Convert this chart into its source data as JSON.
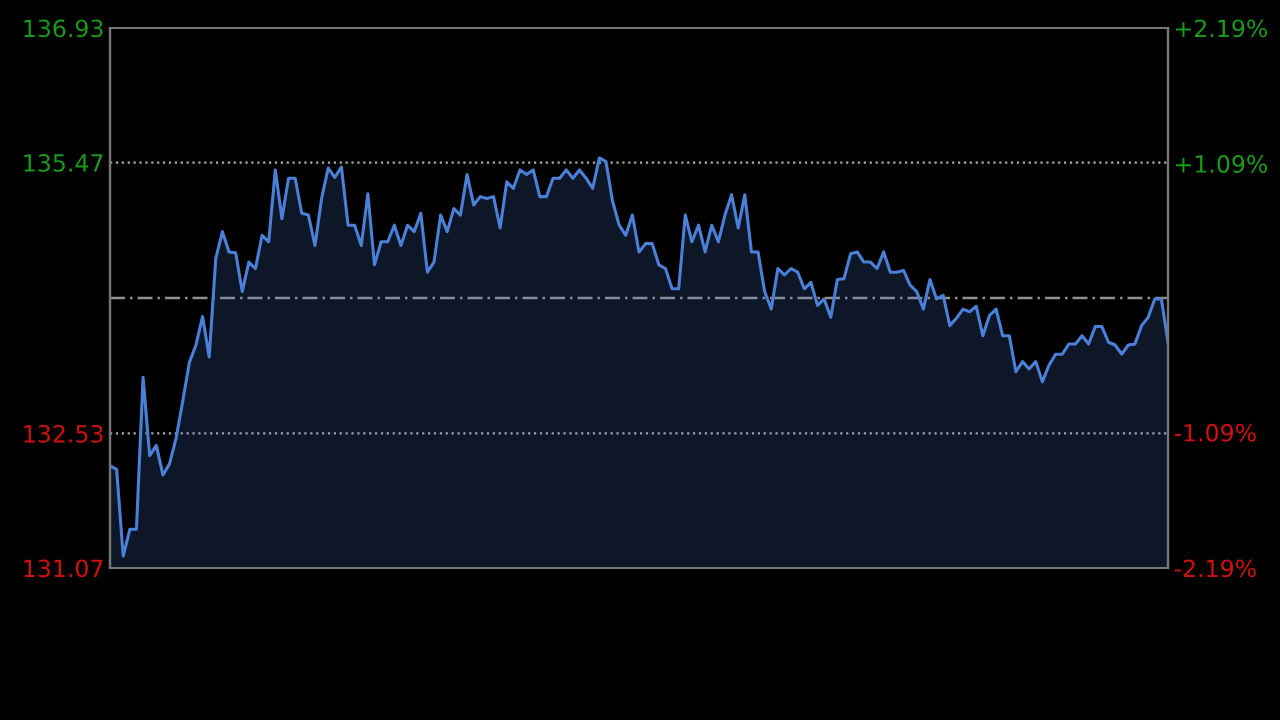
{
  "chart_data": {
    "type": "area",
    "categories": [
      null,
      null,
      null,
      null,
      null,
      null,
      null,
      null,
      null,
      null,
      null,
      null,
      null,
      null,
      null,
      null,
      null,
      null,
      null,
      null,
      null,
      null,
      null,
      null,
      null,
      null,
      null,
      null,
      null,
      null,
      null,
      null,
      null,
      null,
      null,
      null,
      null,
      null,
      null,
      null,
      null,
      null,
      null,
      null,
      null,
      null,
      null,
      null,
      null,
      null,
      null,
      null,
      null,
      null,
      null,
      null,
      null,
      null,
      null,
      null,
      null,
      null,
      null,
      null,
      null,
      null,
      null,
      null,
      null,
      null,
      null,
      null,
      null,
      null,
      null,
      null,
      null,
      null,
      null,
      null,
      null,
      null,
      null,
      null,
      null,
      null,
      null,
      null,
      null,
      null,
      null,
      null,
      null,
      null,
      null,
      null,
      null,
      null,
      null,
      null,
      null,
      null,
      null,
      null,
      null,
      null,
      null,
      null,
      null,
      null,
      null,
      null,
      null,
      null,
      null,
      null,
      null,
      null,
      null,
      null,
      null,
      null,
      null,
      null,
      null,
      null,
      null,
      null,
      null,
      null,
      null,
      null,
      null,
      null,
      null,
      null,
      null,
      null,
      null,
      null,
      null,
      null,
      null,
      null,
      null,
      null,
      null,
      null,
      null,
      null,
      null,
      null,
      null,
      null,
      null,
      null,
      null,
      null,
      null,
      null,
      null
    ],
    "series": [
      {
        "color": "#4a80d8",
        "values": [
          132.18,
          132.14,
          131.2,
          131.49,
          131.49,
          133.14,
          132.29,
          132.4,
          132.08,
          132.2,
          132.48,
          132.88,
          133.3,
          133.49,
          133.8,
          133.36,
          134.43,
          134.72,
          134.5,
          134.49,
          134.07,
          134.39,
          134.32,
          134.68,
          134.61,
          135.39,
          134.86,
          135.3,
          135.3,
          134.92,
          134.9,
          134.57,
          135.08,
          135.41,
          135.31,
          135.42,
          134.79,
          134.79,
          134.57,
          135.13,
          134.36,
          134.61,
          134.61,
          134.79,
          134.57,
          134.79,
          134.72,
          134.92,
          134.28,
          134.39,
          134.9,
          134.72,
          134.97,
          134.9,
          135.34,
          135.01,
          135.1,
          135.08,
          135.1,
          134.76,
          135.26,
          135.19,
          135.39,
          135.34,
          135.39,
          135.1,
          135.1,
          135.3,
          135.3,
          135.39,
          135.3,
          135.39,
          135.3,
          135.19,
          135.52,
          135.48,
          135.05,
          134.79,
          134.68,
          134.9,
          134.5,
          134.59,
          134.59,
          134.36,
          134.32,
          134.1,
          134.1,
          134.9,
          134.61,
          134.79,
          134.5,
          134.79,
          134.61,
          134.9,
          135.12,
          134.76,
          135.12,
          134.5,
          134.5,
          134.07,
          133.88,
          134.32,
          134.25,
          134.32,
          134.28,
          134.1,
          134.17,
          133.92,
          133.99,
          133.79,
          134.2,
          134.21,
          134.48,
          134.5,
          134.39,
          134.39,
          134.32,
          134.5,
          134.28,
          134.28,
          134.3,
          134.14,
          134.07,
          133.88,
          134.2,
          133.99,
          134.03,
          133.7,
          133.78,
          133.88,
          133.85,
          133.91,
          133.59,
          133.81,
          133.88,
          133.59,
          133.59,
          133.2,
          133.31,
          133.23,
          133.31,
          133.09,
          133.27,
          133.39,
          133.39,
          133.5,
          133.5,
          133.59,
          133.5,
          133.69,
          133.69,
          133.52,
          133.49,
          133.39,
          133.49,
          133.5,
          133.7,
          133.79,
          133.99,
          133.99,
          133.52
        ]
      }
    ],
    "ylim": [
      131.07,
      136.93
    ],
    "yticks": [
      131.07,
      132.53,
      135.47,
      136.93
    ],
    "y2lim": [
      -2.19,
      2.19
    ],
    "y2ticks": [
      {
        "value": -2.19,
        "label": "-2.19%"
      },
      {
        "value": -1.09,
        "label": "-1.09%"
      },
      {
        "value": 1.09,
        "label": "+1.09%"
      },
      {
        "value": 2.19,
        "label": "+2.19%"
      }
    ],
    "ref_lines": [
      {
        "axis": "y",
        "value": 134.0,
        "label": null,
        "color": "#909090",
        "line_style": "dashed"
      }
    ],
    "grid": "y",
    "legend": false,
    "line_style": "solid",
    "marker": "none"
  }
}
